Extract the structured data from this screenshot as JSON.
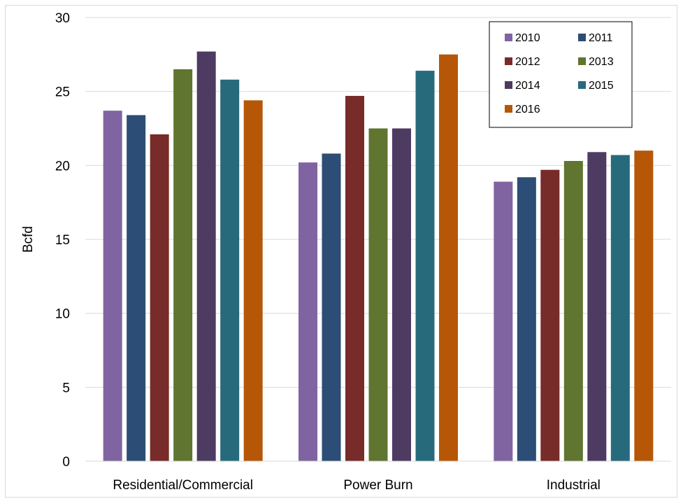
{
  "chart_data": {
    "type": "bar",
    "categories": [
      "Residential/Commercial",
      "Power Burn",
      "Industrial"
    ],
    "series": [
      {
        "name": "2010",
        "color": "#8064a2",
        "values": [
          23.7,
          20.2,
          18.9
        ]
      },
      {
        "name": "2011",
        "color": "#2c4d75",
        "values": [
          23.4,
          20.8,
          19.2
        ]
      },
      {
        "name": "2012",
        "color": "#772c2a",
        "values": [
          22.1,
          24.7,
          19.7
        ]
      },
      {
        "name": "2013",
        "color": "#5f7530",
        "values": [
          26.5,
          22.5,
          20.3
        ]
      },
      {
        "name": "2014",
        "color": "#4d3b62",
        "values": [
          27.7,
          22.5,
          20.9
        ]
      },
      {
        "name": "2015",
        "color": "#276a7c",
        "values": [
          25.8,
          26.4,
          20.7
        ]
      },
      {
        "name": "2016",
        "color": "#b65708",
        "values": [
          24.4,
          27.5,
          21.0
        ]
      }
    ],
    "ylabel": "Bcfd",
    "ylim": [
      0,
      30
    ],
    "yticks": [
      "0",
      "5",
      "10",
      "15",
      "20",
      "25",
      "30"
    ],
    "grid": true,
    "legend_position": "top-right"
  }
}
